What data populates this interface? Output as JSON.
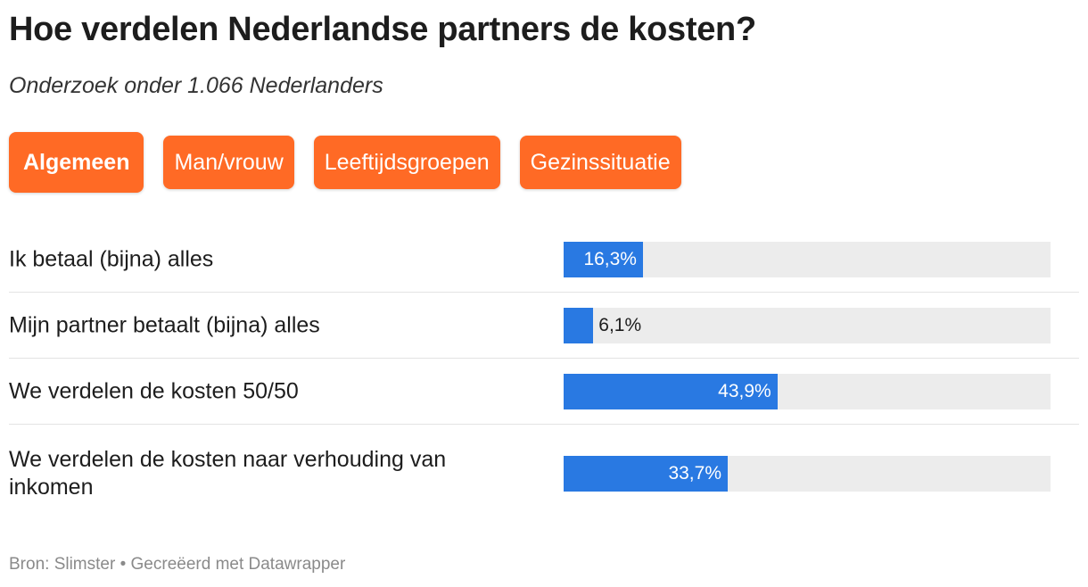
{
  "title": "Hoe verdelen Nederlandse partners de kosten?",
  "subtitle": "Onderzoek onder 1.066 Nederlanders",
  "tabs": [
    {
      "label": "Algemeen",
      "active": true
    },
    {
      "label": "Man/vrouw",
      "active": false
    },
    {
      "label": "Leeftijdsgroepen",
      "active": false
    },
    {
      "label": "Gezinssituatie",
      "active": false
    }
  ],
  "colors": {
    "tab": "#ff6a25",
    "bar": "#2979e2",
    "track": "#ececec"
  },
  "chart_data": {
    "type": "bar",
    "orientation": "horizontal",
    "categories": [
      "Ik betaal (bijna) alles",
      "Mijn partner betaalt (bijna) alles",
      "We verdelen de kosten 50/50",
      "We verdelen de kosten naar verhouding van inkomen"
    ],
    "values": [
      16.3,
      6.1,
      43.9,
      33.7
    ],
    "value_labels": [
      "16,3%",
      "6,1%",
      "43,9%",
      "33,7%"
    ],
    "xlim": [
      0,
      100
    ],
    "unit": "%"
  },
  "footer": {
    "source": "Bron: Slimster • Gecreëerd met Datawrapper"
  }
}
